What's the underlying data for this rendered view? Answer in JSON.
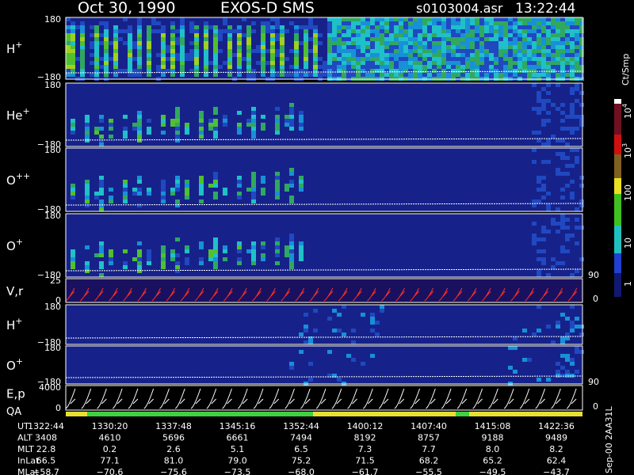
{
  "header": {
    "date": "Oct 30, 1990",
    "instrument": "EXOS-D SMS",
    "file": "s0103004.asr",
    "time": "13:22:44"
  },
  "panels": [
    {
      "label": "H",
      "charge": "+",
      "ticks": [
        "180",
        "−180"
      ]
    },
    {
      "label": "He",
      "charge": "+",
      "ticks": [
        "180",
        "−180"
      ]
    },
    {
      "label": "O",
      "charge": "++",
      "ticks": [
        "180",
        "−180"
      ]
    },
    {
      "label": "O",
      "charge": "+",
      "ticks": [
        "180",
        "−180"
      ]
    },
    {
      "label": "V,r",
      "ticks": [
        "25",
        "0"
      ],
      "right_ticks": [
        "90",
        "0"
      ]
    },
    {
      "label": "H",
      "charge": "+",
      "ticks": [
        "180",
        "−180"
      ]
    },
    {
      "label": "O",
      "charge": "+",
      "ticks": [
        "180",
        "−180"
      ]
    },
    {
      "label": "E,p",
      "label2": "QA",
      "ticks": [
        "4000",
        "0"
      ],
      "right_ticks": [
        "90",
        "0"
      ]
    }
  ],
  "colorbar": {
    "unit": "Ct/Smp",
    "labels": [
      {
        "base": "10",
        "exp": "4"
      },
      {
        "base": "10",
        "exp": "3"
      },
      "100",
      "10",
      "1"
    ]
  },
  "table": {
    "rows": [
      {
        "name": "UT",
        "values": [
          "1322:44",
          "1330:20",
          "1337:48",
          "1345:16",
          "1352:44",
          "1400:12",
          "1407:40",
          "1415:08",
          "1422:36"
        ]
      },
      {
        "name": "ALT",
        "values": [
          "3408",
          "4610",
          "5696",
          "6661",
          "7494",
          "8192",
          "8757",
          "9188",
          "9489"
        ]
      },
      {
        "name": "MLT",
        "values": [
          "22.8",
          "0.2",
          "2.6",
          "5.1",
          "6.5",
          "7.3",
          "7.7",
          "8.0",
          "8.2"
        ]
      },
      {
        "name": "InLat",
        "values": [
          "66.5",
          "77.1",
          "81.0",
          "79.0",
          "75.2",
          "71.5",
          "68.2",
          "65.2",
          "62.4"
        ]
      },
      {
        "name": "MLat",
        "values": [
          "−58.7",
          "−70.6",
          "−75.6",
          "−73.5",
          "−68.0",
          "−61.7",
          "−55.5",
          "−49.5",
          "−43.7"
        ]
      }
    ]
  },
  "footer": "Sep-00 2AA31L"
}
